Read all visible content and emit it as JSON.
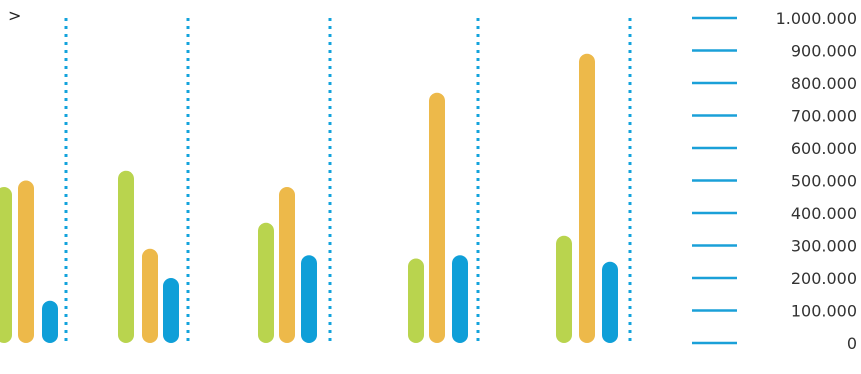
{
  "nav": {
    "next_label": ">"
  },
  "colors": {
    "green": "#b9d44e",
    "orange": "#edb94a",
    "blue": "#0f9fd8",
    "divider": "#13a3dc",
    "tick": "#1aa0d8"
  },
  "chart_data": {
    "type": "bar",
    "categories": [
      "",
      "",
      "",
      "",
      ""
    ],
    "series": [
      {
        "color": "#b9d44e",
        "values": [
          480000,
          530000,
          370000,
          260000,
          330000
        ]
      },
      {
        "color": "#edb94a",
        "values": [
          500000,
          290000,
          480000,
          770000,
          890000
        ]
      },
      {
        "color": "#0f9fd8",
        "values": [
          130000,
          200000,
          270000,
          270000,
          250000
        ]
      }
    ],
    "ylim": [
      0,
      1000000
    ],
    "y_ticks": [
      "0",
      "100.000",
      "200.000",
      "300.000",
      "400.000",
      "500.000",
      "600.000",
      "700.000",
      "800.000",
      "900.000",
      "1.000.000"
    ],
    "grid": false,
    "title": "",
    "xlabel": "",
    "ylabel": ""
  }
}
